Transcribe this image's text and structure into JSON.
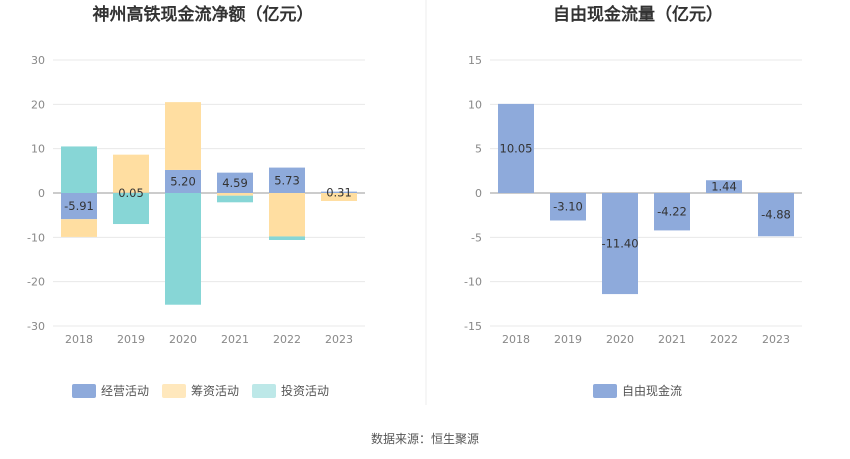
{
  "source_text": "数据来源：恒生聚源",
  "chart_data": [
    {
      "type": "bar",
      "title": "神州高铁现金流净额（亿元）",
      "categories": [
        "2018",
        "2019",
        "2020",
        "2021",
        "2022",
        "2023"
      ],
      "ylim": [
        -30,
        30
      ],
      "yticks": [
        30,
        20,
        10,
        0,
        -10,
        -20,
        -30
      ],
      "stacked": true,
      "legend_position": "bottom",
      "series": [
        {
          "name": "经营活动",
          "color": "#8eaadb",
          "values": [
            -5.91,
            0.05,
            5.2,
            4.59,
            5.73,
            0.31
          ]
        },
        {
          "name": "筹资活动",
          "color": "#ffdea1",
          "values": [
            -4.0,
            8.6,
            15.3,
            -0.6,
            -9.8,
            -1.8
          ]
        },
        {
          "name": "投资活动",
          "color": "#87d6d6",
          "values": [
            10.5,
            -7.0,
            -25.2,
            -1.5,
            -0.8,
            0.0
          ]
        }
      ],
      "data_labels": [
        "-5.91",
        "0.05",
        "5.20",
        "4.59",
        "5.73",
        "0.31"
      ]
    },
    {
      "type": "bar",
      "title": "自由现金流量（亿元）",
      "categories": [
        "2018",
        "2019",
        "2020",
        "2021",
        "2022",
        "2023"
      ],
      "ylim": [
        -15,
        15
      ],
      "yticks": [
        15,
        10,
        5,
        0,
        -5,
        -10,
        -15
      ],
      "legend_position": "bottom",
      "series": [
        {
          "name": "自由现金流",
          "color": "#8eaadb",
          "values": [
            10.05,
            -3.1,
            -11.4,
            -4.22,
            1.44,
            -4.88
          ]
        }
      ],
      "data_labels": [
        "10.05",
        "-3.10",
        "-11.40",
        "-4.22",
        "1.44",
        "-4.88"
      ]
    }
  ]
}
